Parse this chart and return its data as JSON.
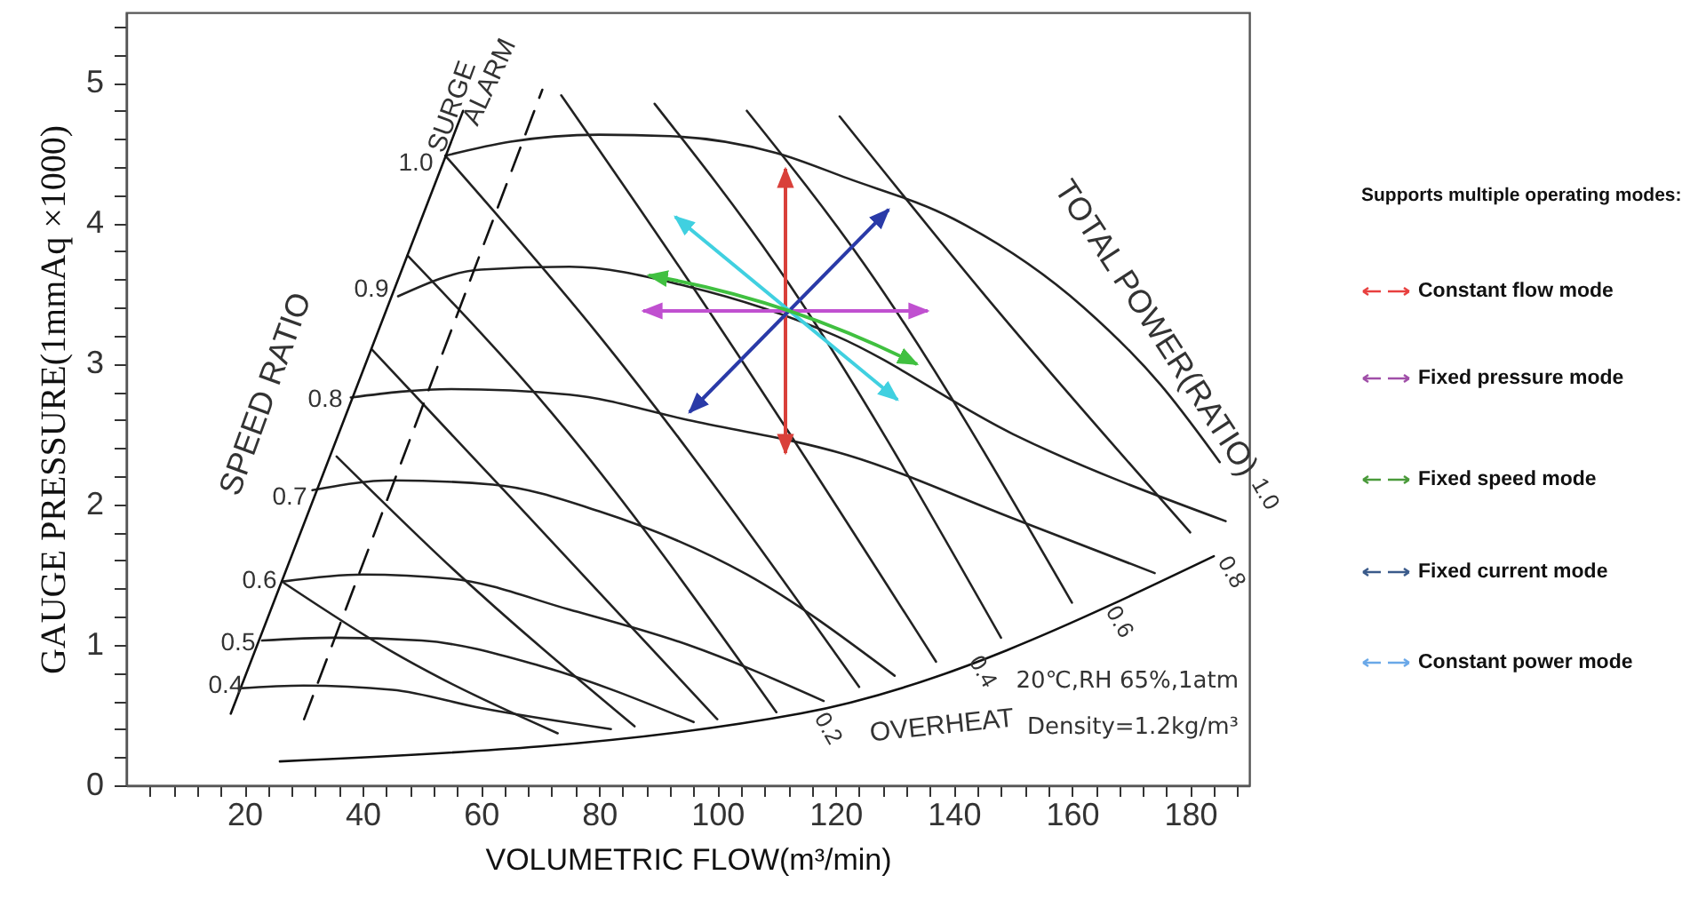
{
  "chart_data": {
    "type": "line",
    "xlabel": "VOLUMETRIC FLOW(m³/min)",
    "ylabel": "GAUGE PRESSURE(1mmAq ×1000)",
    "xlim": [
      0,
      190
    ],
    "ylim": [
      0,
      5.5
    ],
    "xticks": [
      {
        "value": 4,
        "label": null
      },
      {
        "value": 8,
        "label": null
      },
      {
        "value": 12,
        "label": null
      },
      {
        "value": 16,
        "label": null
      },
      20,
      {
        "value": 24,
        "label": null
      },
      {
        "value": 28,
        "label": null
      },
      {
        "value": 32,
        "label": null
      },
      {
        "value": 36,
        "label": null
      },
      40,
      {
        "value": 44,
        "label": null
      },
      {
        "value": 48,
        "label": null
      },
      {
        "value": 52,
        "label": null
      },
      {
        "value": 56,
        "label": null
      },
      60,
      {
        "value": 64,
        "label": null
      },
      {
        "value": 68,
        "label": null
      },
      {
        "value": 72,
        "label": null
      },
      {
        "value": 76,
        "label": null
      },
      80,
      {
        "value": 84,
        "label": null
      },
      {
        "value": 88,
        "label": null
      },
      {
        "value": 92,
        "label": null
      },
      {
        "value": 96,
        "label": null
      },
      100,
      {
        "value": 104,
        "label": null
      },
      {
        "value": 108,
        "label": null
      },
      {
        "value": 112,
        "label": null
      },
      {
        "value": 116,
        "label": null
      },
      120,
      {
        "value": 124,
        "label": null
      },
      {
        "value": 128,
        "label": null
      },
      {
        "value": 132,
        "label": null
      },
      {
        "value": 136,
        "label": null
      },
      140,
      {
        "value": 144,
        "label": null
      },
      {
        "value": 148,
        "label": null
      },
      {
        "value": 152,
        "label": null
      },
      {
        "value": 156,
        "label": null
      },
      160,
      {
        "value": 164,
        "label": null
      },
      {
        "value": 168,
        "label": null
      },
      {
        "value": 172,
        "label": null
      },
      {
        "value": 176,
        "label": null
      },
      180,
      {
        "value": 184,
        "label": null
      },
      {
        "value": 188,
        "label": null
      }
    ],
    "yticks": [
      0,
      {
        "value": 0.2,
        "label": null
      },
      {
        "value": 0.4,
        "label": null
      },
      {
        "value": 0.6,
        "label": null
      },
      {
        "value": 0.8,
        "label": null
      },
      1,
      {
        "value": 1.2,
        "label": null
      },
      {
        "value": 1.4,
        "label": null
      },
      {
        "value": 1.6,
        "label": null
      },
      {
        "value": 1.8,
        "label": null
      },
      2,
      {
        "value": 2.2,
        "label": null
      },
      {
        "value": 2.4,
        "label": null
      },
      {
        "value": 2.6,
        "label": null
      },
      {
        "value": 2.8,
        "label": null
      },
      3,
      {
        "value": 3.2,
        "label": null
      },
      {
        "value": 3.4,
        "label": null
      },
      {
        "value": 3.6,
        "label": null
      },
      {
        "value": 3.8,
        "label": null
      },
      4,
      {
        "value": 4.2,
        "label": null
      },
      {
        "value": 4.4,
        "label": null
      },
      {
        "value": 4.6,
        "label": null
      },
      {
        "value": 4.8,
        "label": null
      },
      5,
      {
        "value": 5.2,
        "label": null
      },
      {
        "value": 5.4,
        "label": null
      }
    ],
    "series": [
      {
        "color": "#222222",
        "x": [
          19,
          30,
          45,
          60,
          82
        ],
        "values": [
          0.69,
          0.71,
          0.68,
          0.55,
          0.4
        ]
      },
      {
        "color": "#222222",
        "x": [
          23,
          35,
          50,
          70,
          96
        ],
        "values": [
          1.03,
          1.05,
          1.03,
          0.85,
          0.45
        ]
      },
      {
        "color": "#222222",
        "x": [
          26.5,
          40,
          55,
          75,
          95,
          118
        ],
        "values": [
          1.45,
          1.5,
          1.47,
          1.25,
          1.0,
          0.6
        ]
      },
      {
        "color": "#222222",
        "x": [
          31.5,
          45,
          62,
          80,
          105,
          130
        ],
        "values": [
          2.1,
          2.17,
          2.14,
          1.95,
          1.5,
          0.78
        ]
      },
      {
        "color": "#222222",
        "x": [
          38,
          55,
          75,
          95,
          122,
          150,
          174
        ],
        "values": [
          2.76,
          2.82,
          2.78,
          2.6,
          2.35,
          1.9,
          1.51
        ]
      },
      {
        "color": "#222222",
        "x": [
          46,
          60,
          75,
          95,
          120,
          150,
          186
        ],
        "values": [
          3.48,
          3.67,
          3.69,
          3.55,
          3.2,
          2.5,
          1.88
        ]
      },
      {
        "color": "#222222",
        "x": [
          54,
          65,
          80,
          92,
          110,
          122,
          140,
          162,
          175,
          185
        ],
        "values": [
          4.48,
          4.58,
          4.63,
          4.62,
          4.5,
          4.32,
          4.03,
          3.4,
          2.85,
          2.3
        ]
      },
      {
        "color": "#222222",
        "x": [
          26.7,
          45,
          73
        ],
        "values": [
          1.44,
          0.95,
          0.37
        ]
      },
      {
        "color": "#222222",
        "x": [
          35.6,
          55,
          86
        ],
        "values": [
          2.34,
          1.55,
          0.42
        ]
      },
      {
        "color": "#222222",
        "x": [
          41.6,
          65,
          100
        ],
        "values": [
          3.1,
          2.05,
          0.47
        ]
      },
      {
        "color": "#222222",
        "x": [
          47.6,
          72,
          110
        ],
        "values": [
          3.77,
          2.65,
          0.52
        ]
      },
      {
        "color": "#222222",
        "x": [
          54,
          80,
          124
        ],
        "values": [
          4.48,
          3.2,
          0.7
        ]
      },
      {
        "color": "#222222",
        "x": [
          73.6,
          95,
          137
        ],
        "values": [
          4.91,
          3.6,
          0.88
        ]
      },
      {
        "color": "#222222",
        "x": [
          89.4,
          110,
          148
        ],
        "values": [
          4.85,
          3.7,
          1.05
        ]
      },
      {
        "color": "#222222",
        "x": [
          105,
          125,
          160
        ],
        "values": [
          4.8,
          3.7,
          1.3
        ]
      },
      {
        "color": "#222222",
        "x": [
          120.7,
          145,
          180
        ],
        "values": [
          4.76,
          3.5,
          1.8
        ]
      },
      {
        "color": "#111111",
        "x": [
          17.7,
          57
        ],
        "values": [
          0.51,
          4.8
        ]
      },
      {
        "color": "#111111",
        "line_style": "dashed",
        "x": [
          30.1,
          70.4
        ],
        "values": [
          0.47,
          4.95
        ]
      },
      {
        "color": "#111111",
        "x": [
          26,
          114,
          184
        ],
        "values": [
          0.17,
          0.51,
          1.63
        ]
      }
    ],
    "annotations": [
      "0.4",
      "0.5",
      "0.6",
      "0.7",
      "0.8",
      "0.9",
      "1.0",
      "SURGE",
      "ALARM",
      "SPEED RATIO",
      "TOTAL POWER(RATIO)",
      "OVERHEAT",
      "0.2",
      "0.4",
      "0.6",
      "0.8",
      "1.0",
      "Supports multiple operating modes:",
      "Constant flow mode",
      "Fixed pressure mode",
      "Fixed speed mode",
      "Fixed current mode",
      "Constant power mode",
      "20℃,RH 65%,1atm",
      "Density=1.2kg/m³"
    ]
  }
}
